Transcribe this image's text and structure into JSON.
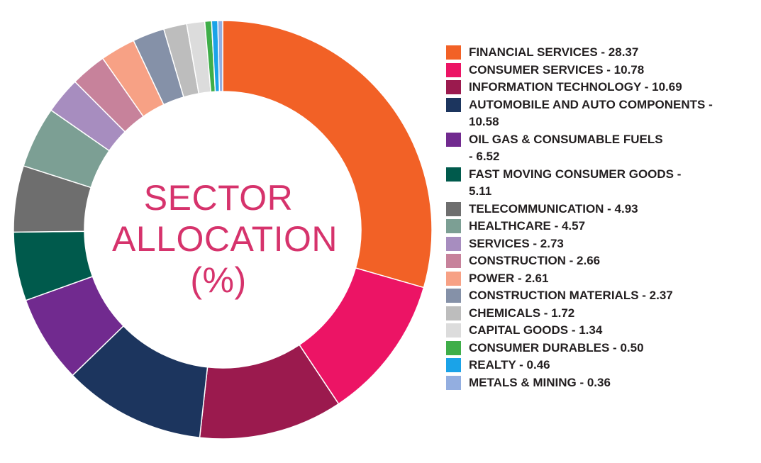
{
  "chart_data": {
    "type": "pie",
    "title_lines": [
      "SECTOR",
      "ALLOCATION",
      "(%)"
    ],
    "slices": [
      {
        "label": "FINANCIAL SERVICES - 28.37",
        "value": 28.37,
        "color": "#f26126"
      },
      {
        "label": "CONSUMER SERVICES - 10.78",
        "value": 10.78,
        "color": "#ec1465"
      },
      {
        "label": "INFORMATION TECHNOLOGY - 10.69",
        "value": 10.69,
        "color": "#9b1a4e"
      },
      {
        "label": "AUTOMOBILE AND AUTO COMPONENTS - 10.58",
        "value": 10.58,
        "color": "#1c355e"
      },
      {
        "label": "OIL GAS & CONSUMABLE FUELS - 6.52",
        "value": 6.52,
        "color": "#712a8f"
      },
      {
        "label": "FAST MOVING CONSUMER GOODS - 5.11",
        "value": 5.11,
        "color": "#005a4c"
      },
      {
        "label": "TELECOMMUNICATION - 4.93",
        "value": 4.93,
        "color": "#6e6e6e"
      },
      {
        "label": "HEALTHCARE - 4.57",
        "value": 4.57,
        "color": "#7c9f94"
      },
      {
        "label": "SERVICES - 2.73",
        "value": 2.73,
        "color": "#a78dbf"
      },
      {
        "label": "CONSTRUCTION - 2.66",
        "value": 2.66,
        "color": "#c7829b"
      },
      {
        "label": "POWER - 2.61",
        "value": 2.61,
        "color": "#f7a185"
      },
      {
        "label": "CONSTRUCTION MATERIALS - 2.37",
        "value": 2.37,
        "color": "#8591a8"
      },
      {
        "label": "CHEMICALS - 1.72",
        "value": 1.72,
        "color": "#bdbdbd"
      },
      {
        "label": "CAPITAL GOODS - 1.34",
        "value": 1.34,
        "color": "#dcdcdc"
      },
      {
        "label": "CONSUMER DURABLES - 0.50",
        "value": 0.5,
        "color": "#3fae49"
      },
      {
        "label": "REALTY - 0.46",
        "value": 0.46,
        "color": "#1aa3e8"
      },
      {
        "label": "METALS & MINING - 0.36",
        "value": 0.36,
        "color": "#93aee0"
      }
    ],
    "legend_lines": [
      [
        "FINANCIAL SERVICES - 28.37"
      ],
      [
        "CONSUMER SERVICES - 10.78"
      ],
      [
        "INFORMATION TECHNOLOGY - 10.69"
      ],
      [
        "AUTOMOBILE AND AUTO COMPONENTS -",
        "10.58"
      ],
      [
        "OIL GAS & CONSUMABLE FUELS",
        "- 6.52"
      ],
      [
        "FAST MOVING CONSUMER GOODS -",
        "5.11"
      ],
      [
        "TELECOMMUNICATION - 4.93"
      ],
      [
        "HEALTHCARE - 4.57"
      ],
      [
        "SERVICES - 2.73"
      ],
      [
        "CONSTRUCTION - 2.66"
      ],
      [
        "POWER - 2.61"
      ],
      [
        "CONSTRUCTION MATERIALS - 2.37"
      ],
      [
        "CHEMICALS - 1.72"
      ],
      [
        "CAPITAL GOODS - 1.34"
      ],
      [
        "CONSUMER DURABLES - 0.50"
      ],
      [
        "REALTY - 0.46"
      ],
      [
        "METALS & MINING - 0.36"
      ]
    ],
    "legend_placement": "right",
    "start_angle": "top, clockwise",
    "title_color": "#d6336c"
  }
}
